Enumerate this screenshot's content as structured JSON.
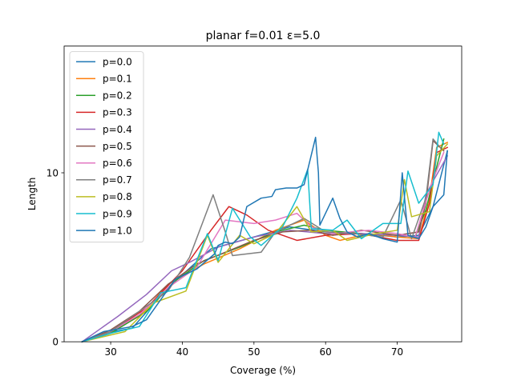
{
  "chart_data": {
    "type": "line",
    "title": "planar f=0.01 ε=5.0",
    "xlabel": "Coverage (%)",
    "ylabel": "Length",
    "xlim": [
      23.5,
      79
    ],
    "ylim": [
      0,
      17.5
    ],
    "x_ticks": [
      30,
      40,
      50,
      60,
      70
    ],
    "y_ticks": [
      0,
      10
    ],
    "grid": false,
    "legend_position": "top-left",
    "series": [
      {
        "name": "p=0.0",
        "color": "#1f77b4",
        "points": [
          [
            26,
            0
          ],
          [
            29,
            0.5
          ],
          [
            33,
            0.8
          ],
          [
            38,
            3.2
          ],
          [
            44,
            5.5
          ],
          [
            50,
            6.2
          ],
          [
            55,
            6.8
          ],
          [
            60,
            6.5
          ],
          [
            65,
            6.4
          ],
          [
            70,
            6.2
          ],
          [
            73,
            6.3
          ],
          [
            75,
            8
          ],
          [
            77,
            11.3
          ]
        ]
      },
      {
        "name": "p=0.1",
        "color": "#ff7f0e",
        "points": [
          [
            26,
            0
          ],
          [
            30,
            0.6
          ],
          [
            34,
            1.5
          ],
          [
            38,
            3.4
          ],
          [
            43,
            4.6
          ],
          [
            48,
            5.5
          ],
          [
            53,
            6.6
          ],
          [
            57,
            7.2
          ],
          [
            60,
            6.3
          ],
          [
            62,
            6.0
          ],
          [
            66,
            6.4
          ],
          [
            70,
            6.2
          ],
          [
            73,
            6.1
          ],
          [
            74.5,
            8.5
          ],
          [
            75.5,
            11.5
          ],
          [
            77,
            11.8
          ]
        ]
      },
      {
        "name": "p=0.2",
        "color": "#2ca02c",
        "points": [
          [
            26,
            0
          ],
          [
            30,
            0.5
          ],
          [
            35,
            1.8
          ],
          [
            39,
            3.6
          ],
          [
            43,
            4.8
          ],
          [
            48,
            5.6
          ],
          [
            53,
            6.5
          ],
          [
            57,
            6.9
          ],
          [
            60,
            6.6
          ],
          [
            65,
            6.4
          ],
          [
            70,
            6.3
          ],
          [
            72.5,
            6.2
          ],
          [
            74,
            7.8
          ],
          [
            75,
            9.5
          ],
          [
            76.5,
            12
          ]
        ]
      },
      {
        "name": "p=0.3",
        "color": "#d62728",
        "points": [
          [
            26,
            0
          ],
          [
            30,
            0.6
          ],
          [
            35,
            2.0
          ],
          [
            40,
            4.2
          ],
          [
            44,
            6.6
          ],
          [
            46.5,
            8.0
          ],
          [
            49,
            7.5
          ],
          [
            52,
            6.6
          ],
          [
            56,
            6.0
          ],
          [
            60,
            6.3
          ],
          [
            65,
            6.4
          ],
          [
            70,
            6.0
          ],
          [
            73,
            6.0
          ],
          [
            74.5,
            8.2
          ],
          [
            75.5,
            11.2
          ],
          [
            77,
            11.5
          ]
        ]
      },
      {
        "name": "p=0.4",
        "color": "#9467bd",
        "points": [
          [
            26,
            0
          ],
          [
            31,
            1.5
          ],
          [
            35,
            2.8
          ],
          [
            38.5,
            4.2
          ],
          [
            41,
            4.7
          ],
          [
            45,
            5.6
          ],
          [
            50,
            6.2
          ],
          [
            55,
            6.6
          ],
          [
            60,
            6.4
          ],
          [
            65,
            6.4
          ],
          [
            70,
            6.3
          ],
          [
            73,
            6.2
          ],
          [
            74,
            8.7
          ],
          [
            75,
            9.5
          ],
          [
            77,
            11.0
          ]
        ]
      },
      {
        "name": "p=0.5",
        "color": "#8c564b",
        "points": [
          [
            26,
            0
          ],
          [
            30,
            0.7
          ],
          [
            34,
            1.8
          ],
          [
            38,
            3.4
          ],
          [
            42,
            4.6
          ],
          [
            46,
            5.3
          ],
          [
            50,
            6.0
          ],
          [
            54,
            6.5
          ],
          [
            58,
            6.6
          ],
          [
            61,
            6.3
          ],
          [
            65,
            6.6
          ],
          [
            70,
            6.3
          ],
          [
            73,
            6.5
          ],
          [
            74,
            8.2
          ],
          [
            75,
            11.9
          ],
          [
            76.5,
            11.3
          ]
        ]
      },
      {
        "name": "p=0.6",
        "color": "#e377c2",
        "points": [
          [
            26,
            0
          ],
          [
            30,
            0.6
          ],
          [
            34,
            1.6
          ],
          [
            38,
            3.2
          ],
          [
            42,
            4.4
          ],
          [
            46,
            7.2
          ],
          [
            50,
            7.0
          ],
          [
            53,
            7.2
          ],
          [
            56,
            7.6
          ],
          [
            58,
            6.8
          ],
          [
            61,
            6.4
          ],
          [
            66,
            6.6
          ],
          [
            70,
            6.4
          ],
          [
            72.5,
            6.2
          ],
          [
            74,
            8.3
          ],
          [
            75,
            9.6
          ],
          [
            76.5,
            11.2
          ]
        ]
      },
      {
        "name": "p=0.7",
        "color": "#7f7f7f",
        "points": [
          [
            26,
            0
          ],
          [
            30,
            0.6
          ],
          [
            34,
            1.8
          ],
          [
            38,
            3.0
          ],
          [
            41,
            5.0
          ],
          [
            44.3,
            8.7
          ],
          [
            46,
            6.5
          ],
          [
            47,
            5.1
          ],
          [
            51,
            5.3
          ],
          [
            53,
            6.5
          ],
          [
            57,
            7.3
          ],
          [
            60,
            6.5
          ],
          [
            64,
            6.4
          ],
          [
            68,
            6.2
          ],
          [
            70.5,
            8.4
          ],
          [
            72,
            6.1
          ],
          [
            74,
            8.5
          ],
          [
            75,
            12.0
          ],
          [
            76,
            11.5
          ]
        ]
      },
      {
        "name": "p=0.8",
        "color": "#bcbd22",
        "points": [
          [
            26,
            0
          ],
          [
            32,
            0.6
          ],
          [
            36,
            2.3
          ],
          [
            40.5,
            3.0
          ],
          [
            43.5,
            6.3
          ],
          [
            45,
            4.7
          ],
          [
            48,
            6.3
          ],
          [
            50,
            5.8
          ],
          [
            53,
            6.4
          ],
          [
            56,
            8.0
          ],
          [
            58,
            6.5
          ],
          [
            61,
            6.6
          ],
          [
            63,
            6.0
          ],
          [
            67,
            6.4
          ],
          [
            70,
            6.6
          ],
          [
            71,
            9.6
          ],
          [
            72,
            7.4
          ],
          [
            74.5,
            7.7
          ],
          [
            75.5,
            11.0
          ],
          [
            77,
            11.7
          ]
        ]
      },
      {
        "name": "p=0.9",
        "color": "#17becf",
        "points": [
          [
            26,
            0
          ],
          [
            30,
            0.5
          ],
          [
            34,
            0.9
          ],
          [
            37,
            2.9
          ],
          [
            40.5,
            3.2
          ],
          [
            43.5,
            6.4
          ],
          [
            45,
            4.8
          ],
          [
            47,
            7.9
          ],
          [
            49.5,
            6.2
          ],
          [
            51,
            5.7
          ],
          [
            54,
            6.8
          ],
          [
            56,
            8.5
          ],
          [
            57.5,
            10.2
          ],
          [
            58,
            6.7
          ],
          [
            61,
            6.6
          ],
          [
            63,
            7.2
          ],
          [
            65,
            6.1
          ],
          [
            68,
            7.0
          ],
          [
            70.5,
            7.0
          ],
          [
            71.5,
            10.1
          ],
          [
            73,
            8.2
          ],
          [
            75,
            9.3
          ],
          [
            75.8,
            12.4
          ],
          [
            76.5,
            11.7
          ]
        ]
      },
      {
        "name": "p=1.0",
        "color": "#1f77b4",
        "points": [
          [
            26,
            0
          ],
          [
            29,
            0.6
          ],
          [
            33,
            0.9
          ],
          [
            35,
            1.3
          ],
          [
            37.5,
            2.8
          ],
          [
            39,
            3.7
          ],
          [
            42,
            4.3
          ],
          [
            44.5,
            5.2
          ],
          [
            45,
            5.7
          ],
          [
            46,
            5.9
          ],
          [
            47,
            5.8
          ],
          [
            48,
            6.2
          ],
          [
            49,
            8.0
          ],
          [
            51,
            8.5
          ],
          [
            52.5,
            8.6
          ],
          [
            53,
            9.0
          ],
          [
            54.5,
            9.1
          ],
          [
            56,
            9.1
          ],
          [
            57,
            9.3
          ],
          [
            58.6,
            12.1
          ],
          [
            59,
            10.0
          ],
          [
            59.2,
            6.9
          ],
          [
            61,
            8.5
          ],
          [
            62,
            7.3
          ],
          [
            63,
            6.5
          ],
          [
            64.5,
            6.2
          ],
          [
            66,
            6.4
          ],
          [
            68,
            6.1
          ],
          [
            70,
            5.9
          ],
          [
            70.7,
            10.0
          ],
          [
            71.5,
            6.3
          ],
          [
            73,
            6.1
          ],
          [
            74,
            6.8
          ],
          [
            75,
            8.0
          ],
          [
            76.5,
            8.7
          ],
          [
            77,
            11.3
          ]
        ]
      }
    ]
  }
}
